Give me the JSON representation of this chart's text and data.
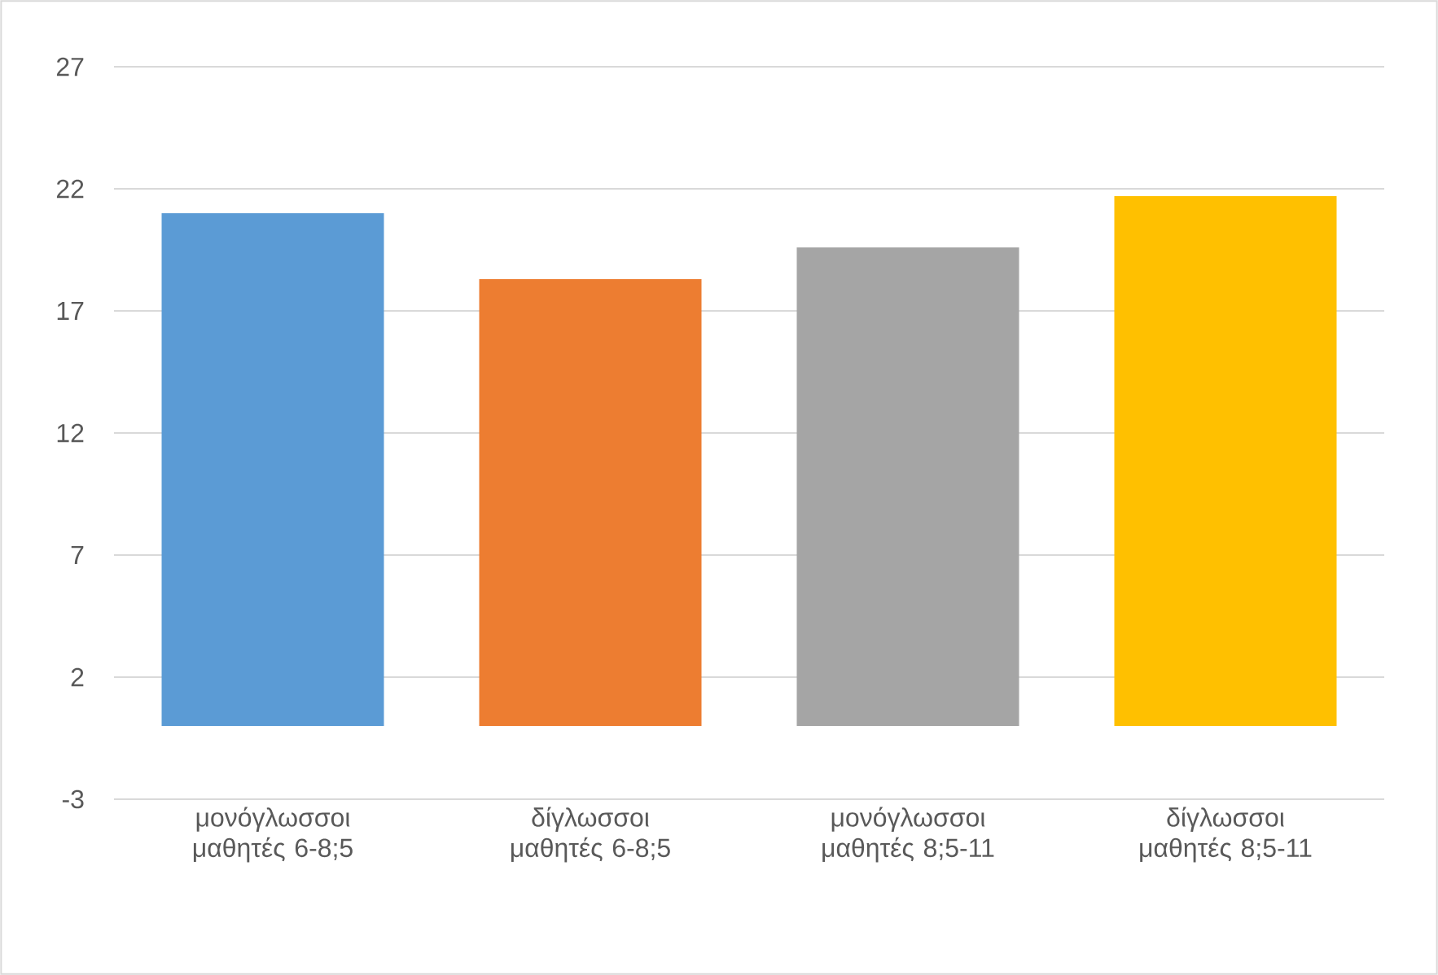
{
  "chart_data": {
    "type": "bar",
    "categories": [
      "μονόγλωσσοι μαθητές 6-8;5",
      "δίγλωσσοι μαθητές 6-8;5",
      "μονόγλωσσοι μαθητές 8;5-11",
      "δίγλωσσοι μαθητές 8;5-11"
    ],
    "values": [
      21.0,
      18.3,
      19.6,
      21.7
    ],
    "colors": [
      "#5b9bd5",
      "#ed7d31",
      "#a5a5a5",
      "#ffc000"
    ],
    "ylim": [
      -3,
      27
    ],
    "yticks": [
      -3,
      2,
      7,
      12,
      17,
      22,
      27
    ],
    "grid": "y"
  }
}
